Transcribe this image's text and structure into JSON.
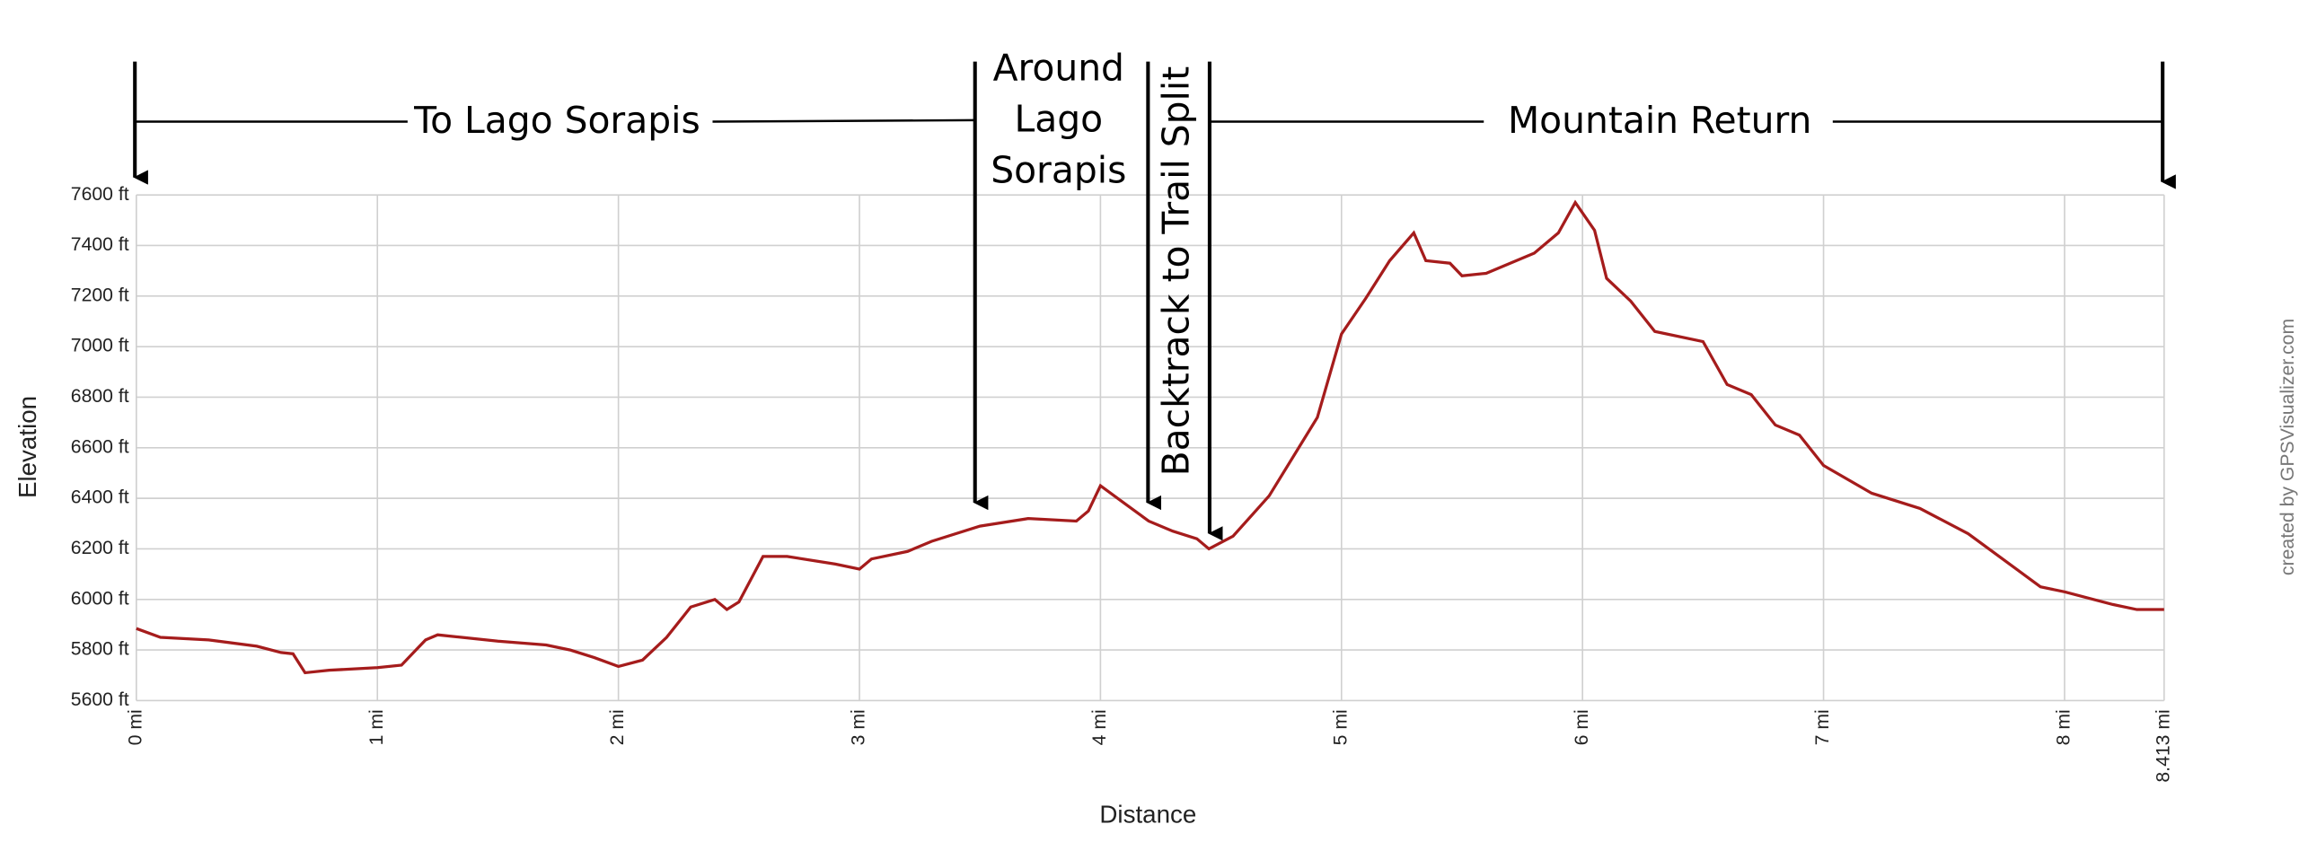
{
  "chart_data": {
    "type": "line",
    "x_label": "Distance",
    "y_label": "Elevation",
    "credit": "created by GPSVisualizer.com",
    "annotations": [
      "To Lago Sorapis",
      [
        "Around",
        "Lago",
        "Sorapis"
      ],
      "Backtrack to Trail Split",
      "Mountain Return"
    ],
    "color": "#a51c1c",
    "grid": true,
    "xlim": [
      0,
      8.413
    ],
    "ylim": [
      5600,
      7600
    ],
    "xticks": [
      {
        "value": 0,
        "label": "0 mi"
      },
      {
        "value": 1,
        "label": "1 mi"
      },
      {
        "value": 2,
        "label": "2 mi"
      },
      {
        "value": 3,
        "label": "3 mi"
      },
      {
        "value": 4,
        "label": "4 mi"
      },
      {
        "value": 5,
        "label": "5 mi"
      },
      {
        "value": 6,
        "label": "6 mi"
      },
      {
        "value": 7,
        "label": "7 mi"
      },
      {
        "value": 8,
        "label": "8 mi"
      },
      {
        "value": 8.413,
        "label": "8.413 mi"
      }
    ],
    "yticks": [
      {
        "value": 5600,
        "label": "5600 ft"
      },
      {
        "value": 5800,
        "label": "5800 ft"
      },
      {
        "value": 6000,
        "label": "6000 ft"
      },
      {
        "value": 6200,
        "label": "6200 ft"
      },
      {
        "value": 6400,
        "label": "6400 ft"
      },
      {
        "value": 6600,
        "label": "6600 ft"
      },
      {
        "value": 6800,
        "label": "6800 ft"
      },
      {
        "value": 7000,
        "label": "7000 ft"
      },
      {
        "value": 7200,
        "label": "7200 ft"
      },
      {
        "value": 7400,
        "label": "7400 ft"
      },
      {
        "value": 7600,
        "label": "7600 ft"
      }
    ],
    "x": [
      0,
      0.1,
      0.3,
      0.5,
      0.6,
      0.65,
      0.7,
      0.8,
      1.0,
      1.1,
      1.15,
      1.2,
      1.25,
      1.35,
      1.5,
      1.7,
      1.8,
      1.9,
      2.0,
      2.1,
      2.2,
      2.3,
      2.4,
      2.45,
      2.5,
      2.6,
      2.7,
      2.9,
      3.0,
      3.05,
      3.2,
      3.3,
      3.5,
      3.7,
      3.9,
      3.95,
      4.0,
      4.1,
      4.2,
      4.3,
      4.4,
      4.45,
      4.55,
      4.7,
      4.9,
      5.0,
      5.1,
      5.2,
      5.3,
      5.35,
      5.45,
      5.5,
      5.6,
      5.7,
      5.8,
      5.9,
      5.97,
      6.05,
      6.1,
      6.2,
      6.3,
      6.5,
      6.6,
      6.7,
      6.8,
      6.9,
      7.0,
      7.2,
      7.4,
      7.6,
      7.8,
      7.9,
      8.0,
      8.2,
      8.3,
      8.413
    ],
    "values": [
      5885,
      5850,
      5840,
      5815,
      5790,
      5785,
      5710,
      5720,
      5730,
      5740,
      5790,
      5840,
      5860,
      5850,
      5835,
      5820,
      5800,
      5770,
      5735,
      5760,
      5850,
      5970,
      6000,
      5960,
      5990,
      6170,
      6170,
      6140,
      6120,
      6160,
      6190,
      6230,
      6290,
      6320,
      6310,
      6350,
      6450,
      6380,
      6310,
      6270,
      6240,
      6200,
      6250,
      6410,
      6720,
      7050,
      7190,
      7340,
      7450,
      7340,
      7330,
      7280,
      7290,
      7330,
      7370,
      7450,
      7570,
      7460,
      7270,
      7180,
      7060,
      7020,
      6850,
      6810,
      6690,
      6650,
      6530,
      6420,
      6360,
      6260,
      6120,
      6050,
      6030,
      5980,
      5960,
      5960
    ]
  }
}
